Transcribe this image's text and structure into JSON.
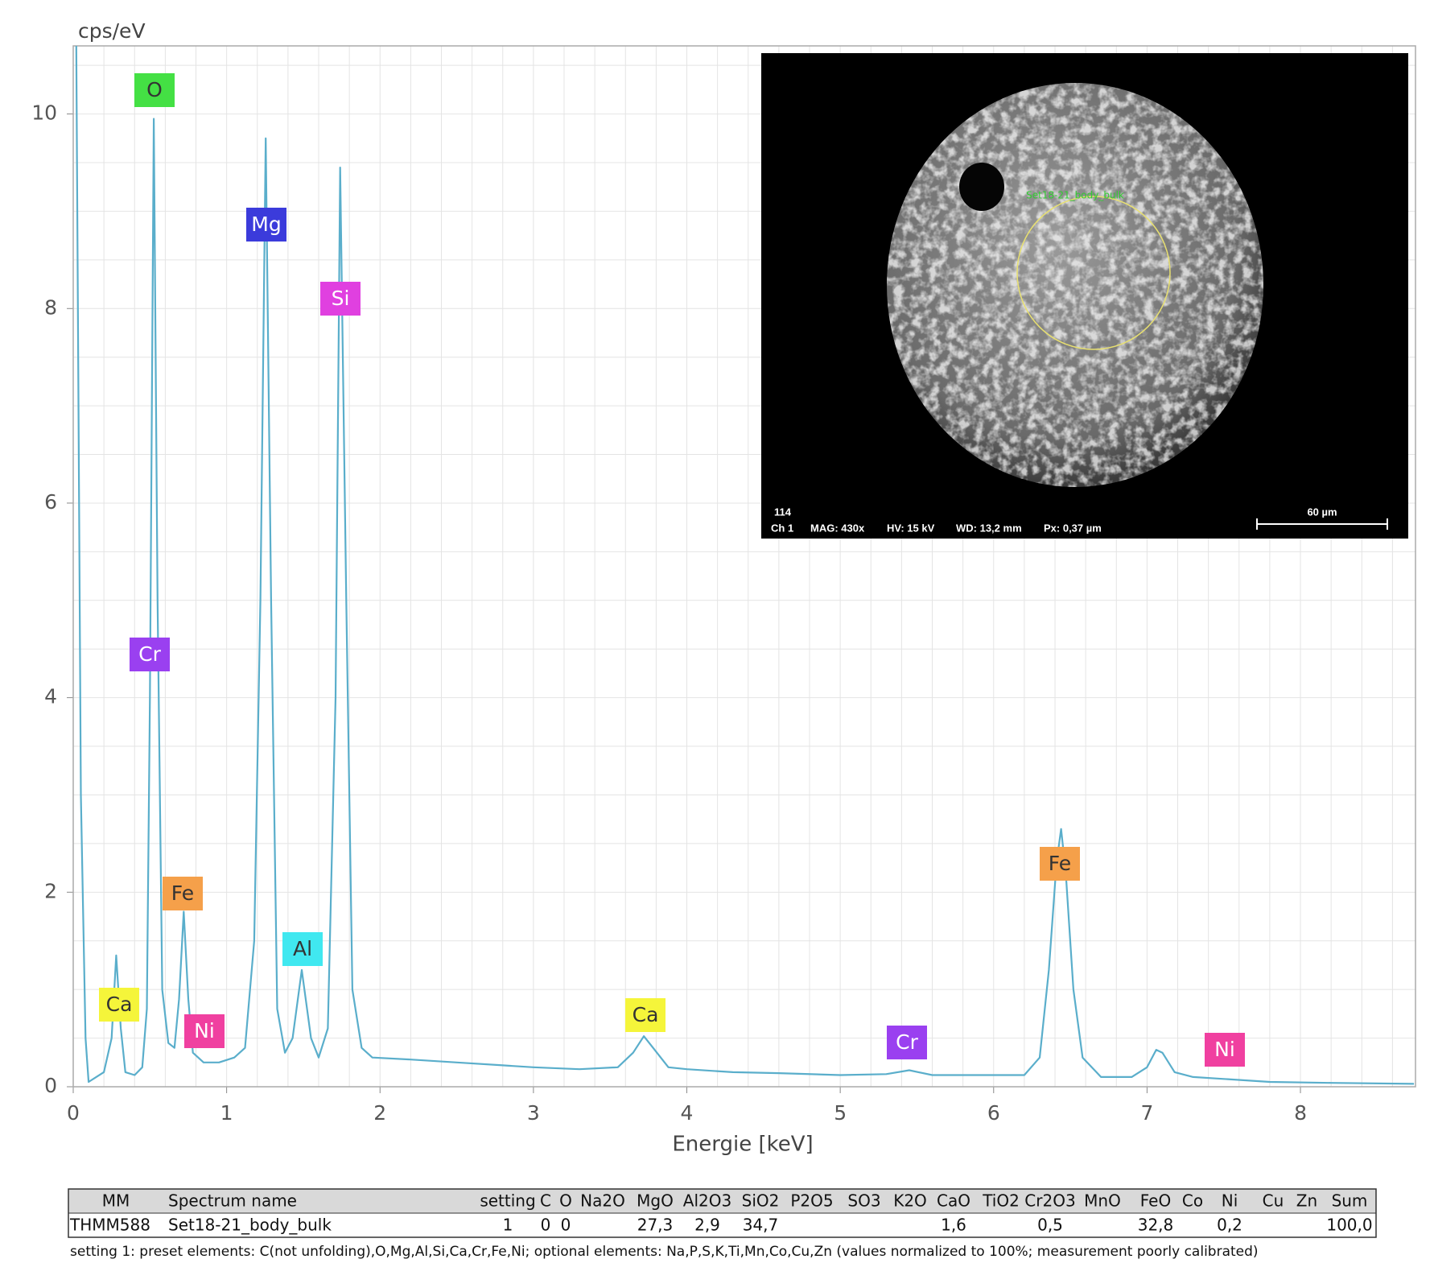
{
  "chart_data": {
    "type": "line",
    "ylabel": "cps/eV",
    "xlabel": "Energie [keV]",
    "xlim": [
      0,
      8.75
    ],
    "ylim": [
      0,
      10.7
    ],
    "xticks": [
      0,
      1,
      2,
      3,
      4,
      5,
      6,
      7,
      8
    ],
    "yticks": [
      0,
      2,
      4,
      6,
      8,
      10
    ],
    "grid": true,
    "minor_grid": {
      "x": 0.2,
      "y": 0.5
    },
    "color": "#5aaecb",
    "x": [
      0.02,
      0.05,
      0.08,
      0.1,
      0.15,
      0.2,
      0.25,
      0.28,
      0.31,
      0.34,
      0.4,
      0.45,
      0.48,
      0.5,
      0.525,
      0.55,
      0.58,
      0.62,
      0.66,
      0.69,
      0.72,
      0.75,
      0.78,
      0.85,
      0.95,
      1.05,
      1.12,
      1.18,
      1.22,
      1.255,
      1.29,
      1.33,
      1.38,
      1.43,
      1.49,
      1.55,
      1.6,
      1.66,
      1.71,
      1.74,
      1.78,
      1.82,
      1.88,
      1.95,
      2.2,
      2.5,
      2.8,
      3.0,
      3.3,
      3.55,
      3.65,
      3.72,
      3.78,
      3.88,
      4.0,
      4.3,
      4.6,
      5.0,
      5.3,
      5.45,
      5.6,
      6.0,
      6.2,
      6.3,
      6.36,
      6.41,
      6.44,
      6.47,
      6.52,
      6.58,
      6.7,
      6.9,
      7.0,
      7.06,
      7.1,
      7.18,
      7.3,
      7.5,
      7.8,
      8.2,
      8.74
    ],
    "values": [
      10.7,
      3,
      0.5,
      0.05,
      0.1,
      0.15,
      0.5,
      1.35,
      0.6,
      0.15,
      0.12,
      0.2,
      0.8,
      4,
      9.95,
      5,
      1.0,
      0.45,
      0.4,
      0.9,
      1.8,
      0.9,
      0.35,
      0.25,
      0.25,
      0.3,
      0.4,
      1.5,
      5,
      9.75,
      5,
      0.8,
      0.35,
      0.5,
      1.2,
      0.5,
      0.3,
      0.6,
      4,
      9.45,
      5,
      1.0,
      0.4,
      0.3,
      0.28,
      0.25,
      0.22,
      0.2,
      0.18,
      0.2,
      0.35,
      0.52,
      0.4,
      0.2,
      0.18,
      0.15,
      0.14,
      0.12,
      0.13,
      0.17,
      0.12,
      0.12,
      0.12,
      0.3,
      1.2,
      2.3,
      2.65,
      2.2,
      1.0,
      0.3,
      0.1,
      0.1,
      0.2,
      0.38,
      0.35,
      0.15,
      0.1,
      0.08,
      0.05,
      0.04,
      0.03
    ],
    "annotations": [
      {
        "text": "O",
        "color": "#44e044"
      },
      {
        "text": "Mg",
        "color": "#3b3bdb"
      },
      {
        "text": "Si",
        "color": "#e040e0"
      },
      {
        "text": "Cr",
        "color": "#9a40f0"
      },
      {
        "text": "Fe",
        "color": "#f5a04a"
      },
      {
        "text": "Al",
        "color": "#40e8f0"
      },
      {
        "text": "Ca",
        "color": "#f5f53a"
      },
      {
        "text": "Ni",
        "color": "#f040a0"
      },
      {
        "text": "Ca",
        "color": "#f5f53a"
      },
      {
        "text": "Cr",
        "color": "#9a40f0"
      },
      {
        "text": "Fe",
        "color": "#f5a04a"
      },
      {
        "text": "Ni",
        "color": "#f040a0"
      }
    ]
  },
  "inset": {
    "region_label": "Set18-21_body_bulk",
    "frame": "114",
    "channel": "Ch 1",
    "mag": "MAG: 430x",
    "hv": "HV: 15 kV",
    "wd": "WD: 13,2 mm",
    "px": "Px: 0,37 µm",
    "scale": "60 µm"
  },
  "table": {
    "header": [
      "MM",
      "Spectrum name",
      "setting",
      "C",
      "O",
      "Na2O",
      "MgO",
      "Al2O3",
      "SiO2",
      "P2O5",
      "SO3",
      "K2O",
      "CaO",
      "TiO2",
      "Cr2O3",
      "MnO",
      "FeO",
      "Co",
      "Ni",
      "Cu",
      "Zn",
      "Sum"
    ],
    "rows": [
      [
        "THMM588",
        "Set18-21_body_bulk",
        "1",
        "0",
        "0",
        null,
        "27,3",
        "2,9",
        "34,7",
        null,
        null,
        null,
        "1,6",
        null,
        "0,5",
        null,
        "32,8",
        null,
        "0,2",
        null,
        null,
        "100,0"
      ]
    ]
  },
  "note": "setting 1: preset elements: C(not unfolding),O,Mg,Al,Si,Ca,Cr,Fe,Ni; optional elements: Na,P,S,K,Ti,Mn,Co,Cu,Zn (values normalized to 100%; measurement poorly calibrated)"
}
